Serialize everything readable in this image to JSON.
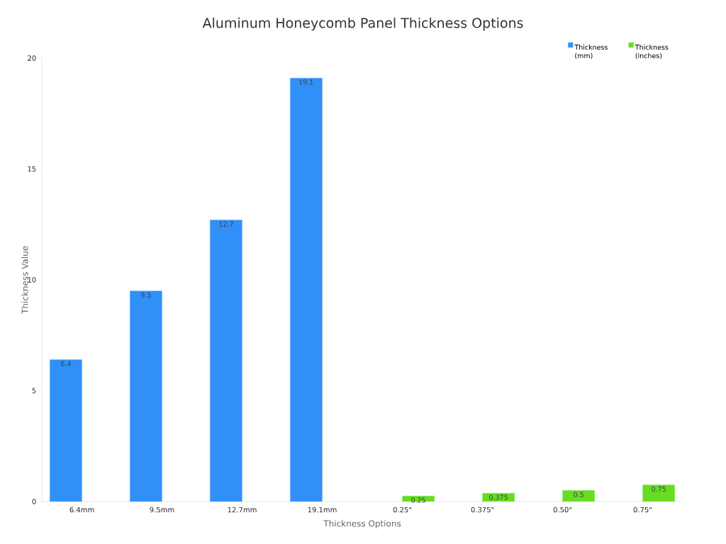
{
  "chart_data": {
    "type": "bar",
    "title": "Aluminum Honeycomb Panel Thickness Options",
    "xlabel": "Thickness Options",
    "ylabel": "Thickness Value",
    "categories": [
      "6.4mm",
      "9.5mm",
      "12.7mm",
      "19.1mm",
      "0.25\"",
      "0.375\"",
      "0.50\"",
      "0.75\""
    ],
    "series": [
      {
        "name": "Thickness (mm)",
        "color": "#3090f8",
        "values": [
          6.4,
          9.5,
          12.7,
          19.1,
          null,
          null,
          null,
          null
        ]
      },
      {
        "name": "Thickness (inches)",
        "color": "#66dd22",
        "values": [
          null,
          null,
          null,
          null,
          0.25,
          0.375,
          0.5,
          0.75
        ]
      }
    ],
    "ylim": [
      0,
      20
    ],
    "yticks": [
      0,
      5,
      10,
      15,
      20
    ],
    "data_labels": true,
    "legend": "top right"
  }
}
